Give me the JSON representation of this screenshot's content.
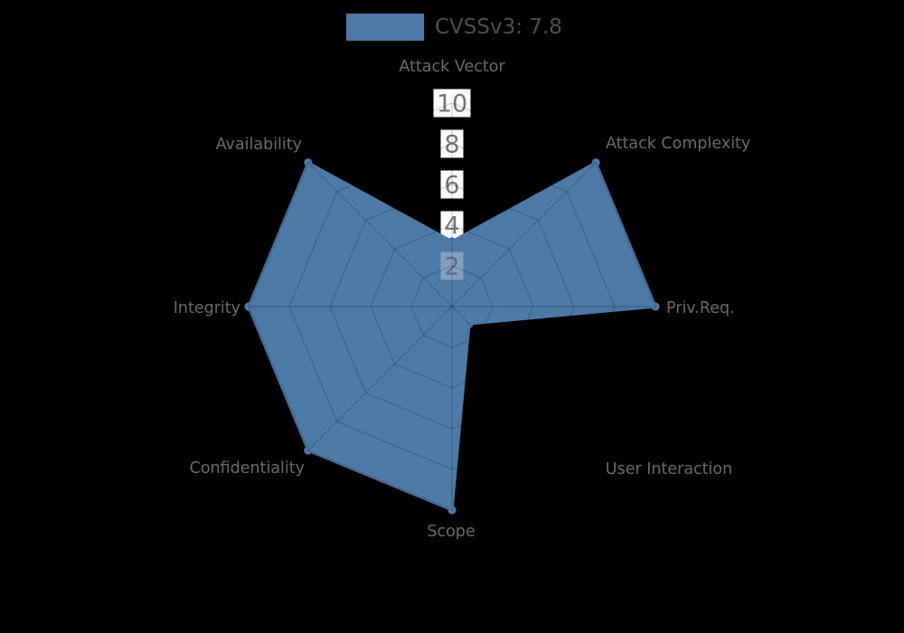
{
  "chart_data": {
    "type": "radar",
    "legend": {
      "label": "CVSSv3: 7.8",
      "position": "top"
    },
    "axes": [
      {
        "label": "Attack Vector",
        "value": 3.2
      },
      {
        "label": "Attack Complexity",
        "value": 10
      },
      {
        "label": "Priv.Req.",
        "value": 10
      },
      {
        "label": "User Interaction",
        "value": 1.2
      },
      {
        "label": "Scope",
        "value": 10
      },
      {
        "label": "Confidentiality",
        "value": 10
      },
      {
        "label": "Integrity",
        "value": 10
      },
      {
        "label": "Availability",
        "value": 10
      }
    ],
    "r_ticks": [
      2,
      4,
      6,
      8,
      10
    ],
    "r_range": [
      0,
      10
    ],
    "grid": true,
    "colors": {
      "fill": "#4d79a7",
      "grid": "rgba(0,0,0,0.16)",
      "tick_box": "#ffffff",
      "tick_box_covered": "rgba(255,255,255,0.30)",
      "tick_text": "#757575",
      "tick_text_covered": "#5e6e87",
      "axis_label_text": "#696969",
      "legend_text": "#4f4f4f",
      "background": "#000000"
    }
  }
}
